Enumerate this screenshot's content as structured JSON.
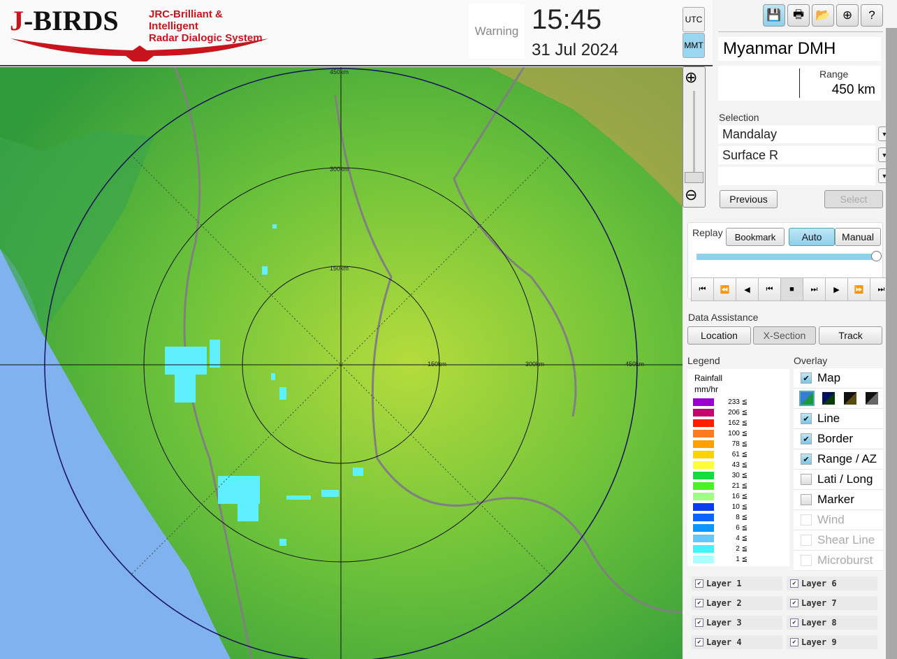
{
  "header": {
    "logo_title": "J-BIRDS",
    "logo_sub1": "JRC-Brilliant & Intelligent",
    "logo_sub2": "Radar Dialogic System",
    "warning": "Warning",
    "time": "15:45",
    "date": "31 Jul 2024",
    "tz_utc": "UTC",
    "tz_mmt": "MMT",
    "tz_selected": "MMT"
  },
  "toolbar": {
    "icons": [
      "save-icon",
      "print-icon",
      "folder-open-icon",
      "add-window-icon",
      "help-icon"
    ]
  },
  "station": {
    "name": "Myanmar DMH",
    "range_label": "Range",
    "range_value": "450 km"
  },
  "selection": {
    "label": "Selection",
    "site": "Mandalay",
    "product": "Surface R",
    "third": "",
    "previous": "Previous",
    "select": "Select"
  },
  "replay": {
    "label": "Replay",
    "bookmark": "Bookmark",
    "auto": "Auto",
    "manual": "Manual",
    "mode": "Auto",
    "position": 1.0
  },
  "data_assistance": {
    "label": "Data Assistance",
    "location": "Location",
    "xsection": "X-Section",
    "track": "Track"
  },
  "legend": {
    "label": "Legend",
    "title1": "Rainfall",
    "title2": "mm/hr",
    "items": [
      {
        "v": "233 ≦",
        "c": "#9400d3"
      },
      {
        "v": "206 ≦",
        "c": "#c8006e"
      },
      {
        "v": "162 ≦",
        "c": "#ff1e00"
      },
      {
        "v": "100 ≦",
        "c": "#ff7a1e"
      },
      {
        "v": "78 ≦",
        "c": "#ffa000"
      },
      {
        "v": "61 ≦",
        "c": "#ffd200"
      },
      {
        "v": "43 ≦",
        "c": "#ffff3c"
      },
      {
        "v": "30 ≦",
        "c": "#14dc3c"
      },
      {
        "v": "21 ≦",
        "c": "#50f028"
      },
      {
        "v": "16 ≦",
        "c": "#a0ff82"
      },
      {
        "v": "10 ≦",
        "c": "#0a3cf0"
      },
      {
        "v": "8 ≦",
        "c": "#0a64ff"
      },
      {
        "v": "6 ≦",
        "c": "#0a96ff"
      },
      {
        "v": "4 ≦",
        "c": "#64c8ff"
      },
      {
        "v": "2 ≦",
        "c": "#46f0ff"
      },
      {
        "v": "1 ≦",
        "c": "#aaffff"
      }
    ]
  },
  "overlay": {
    "label": "Overlay",
    "items": [
      {
        "label": "Map",
        "checked": true,
        "enabled": true
      },
      {
        "label": "Line",
        "checked": true,
        "enabled": true
      },
      {
        "label": "Border",
        "checked": true,
        "enabled": true
      },
      {
        "label": "Range / AZ",
        "checked": true,
        "enabled": true
      },
      {
        "label": "Lati / Long",
        "checked": false,
        "enabled": true
      },
      {
        "label": "Marker",
        "checked": false,
        "enabled": true
      },
      {
        "label": "Wind",
        "checked": false,
        "enabled": false
      },
      {
        "label": "Shear Line",
        "checked": false,
        "enabled": false
      },
      {
        "label": "Microburst",
        "checked": false,
        "enabled": false
      }
    ]
  },
  "layers": [
    "Layer 1",
    "Layer 2",
    "Layer 3",
    "Layer 4",
    "Layer 6",
    "Layer 7",
    "Layer 8",
    "Layer 9"
  ],
  "map": {
    "range_labels": [
      "150km",
      "300km",
      "450km"
    ]
  }
}
